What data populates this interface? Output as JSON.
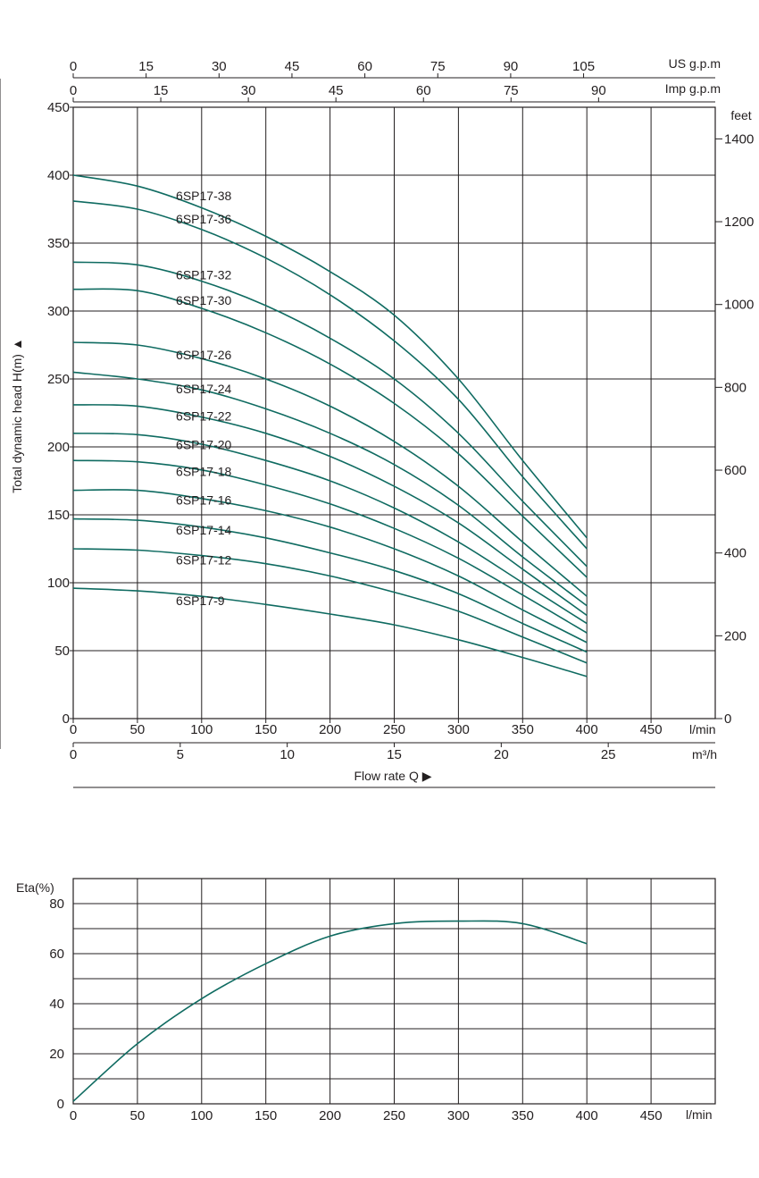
{
  "chart_data": [
    {
      "type": "line",
      "title": "",
      "x": [
        0,
        50,
        100,
        150,
        200,
        250,
        300,
        350,
        400
      ],
      "xlabel": "Flow  rate Q",
      "x_unit": "l/min",
      "xlim": [
        0,
        500
      ],
      "x_ticks": [
        0,
        50,
        100,
        150,
        200,
        250,
        300,
        350,
        400,
        450
      ],
      "ylabel": "Total dynamic head H(m)",
      "ylim": [
        0,
        450
      ],
      "y_ticks": [
        0,
        50,
        100,
        150,
        200,
        250,
        300,
        350,
        400,
        450
      ],
      "secondary_axes": {
        "m3h": {
          "unit": "m³/h",
          "ticks": [
            0,
            5,
            10,
            15,
            20,
            25
          ]
        },
        "us_gpm": {
          "unit": "US g.p.m",
          "ticks": [
            0,
            15,
            30,
            45,
            60,
            75,
            90,
            105
          ]
        },
        "imp_gpm": {
          "unit": "Imp g.p.m",
          "ticks": [
            0,
            15,
            30,
            45,
            60,
            75,
            90
          ]
        },
        "feet": {
          "unit": "feet",
          "ticks": [
            0,
            200,
            400,
            600,
            800,
            1000,
            1200,
            1400
          ]
        }
      },
      "grid": true,
      "series": [
        {
          "name": "6SP17-38",
          "values": [
            400,
            392,
            376,
            355,
            329,
            297,
            250,
            190,
            133
          ]
        },
        {
          "name": "6SP17-36",
          "values": [
            381,
            375,
            360,
            339,
            312,
            278,
            235,
            178,
            125
          ]
        },
        {
          "name": "6SP17-32",
          "values": [
            336,
            334,
            322,
            304,
            280,
            250,
            210,
            160,
            112
          ]
        },
        {
          "name": "6SP17-30",
          "values": [
            316,
            315,
            302,
            284,
            261,
            232,
            195,
            149,
            104
          ]
        },
        {
          "name": "6SP17-26",
          "values": [
            277,
            275,
            265,
            250,
            230,
            204,
            171,
            130,
            90
          ]
        },
        {
          "name": "6SP17-24",
          "values": [
            255,
            250,
            242,
            228,
            210,
            187,
            157,
            119,
            83
          ]
        },
        {
          "name": "6SP17-22",
          "values": [
            231,
            230,
            222,
            210,
            193,
            171,
            144,
            110,
            76
          ]
        },
        {
          "name": "6SP17-20",
          "values": [
            210,
            209,
            202,
            190,
            175,
            155,
            130,
            100,
            70
          ]
        },
        {
          "name": "6SP17-18",
          "values": [
            190,
            189,
            183,
            172,
            158,
            140,
            118,
            91,
            63
          ]
        },
        {
          "name": "6SP17-16",
          "values": [
            168,
            168,
            162,
            153,
            141,
            125,
            105,
            80,
            56
          ]
        },
        {
          "name": "6SP17-14",
          "values": [
            147,
            146,
            141,
            133,
            122,
            109,
            92,
            70,
            49
          ]
        },
        {
          "name": "6SP17-12",
          "values": [
            125,
            124,
            120,
            114,
            105,
            93,
            79,
            60,
            41
          ]
        },
        {
          "name": "6SP17-9",
          "values": [
            96,
            94,
            90,
            84,
            77,
            69,
            58,
            45,
            31
          ]
        }
      ]
    },
    {
      "type": "line",
      "title": "",
      "x": [
        0,
        50,
        100,
        150,
        200,
        250,
        300,
        350,
        400
      ],
      "x_unit": "l/min",
      "xlim": [
        0,
        500
      ],
      "x_ticks": [
        0,
        50,
        100,
        150,
        200,
        250,
        300,
        350,
        400,
        450
      ],
      "ylabel": "Eta(%)",
      "ylim": [
        0,
        90
      ],
      "y_ticks": [
        0,
        20,
        40,
        60,
        80
      ],
      "grid": true,
      "series": [
        {
          "values": [
            1,
            24,
            42,
            56,
            67,
            72,
            73,
            72,
            64
          ]
        }
      ]
    }
  ]
}
